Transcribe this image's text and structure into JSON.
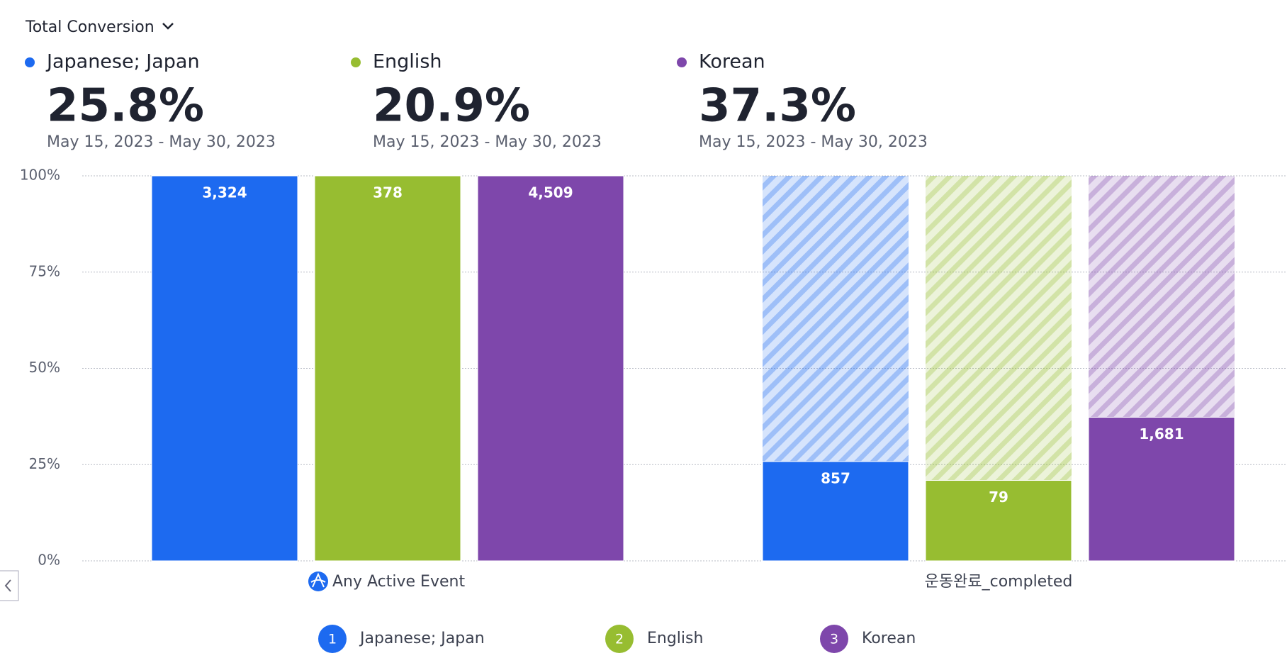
{
  "header": {
    "title": "Total Conversion"
  },
  "summary": [
    {
      "name": "Japanese; Japan",
      "conversion": "25.8%",
      "date_range": "May 15, 2023 - May 30, 2023"
    },
    {
      "name": "English",
      "conversion": "20.9%",
      "date_range": "May 15, 2023 - May 30, 2023"
    },
    {
      "name": "Korean",
      "conversion": "37.3%",
      "date_range": "May 15, 2023 - May 30, 2023"
    }
  ],
  "chart_data": {
    "type": "funnel",
    "categories": [
      "Any Active Event",
      "운동완료_completed"
    ],
    "series": [
      {
        "name": "Japanese; Japan",
        "color": "#1d6af0",
        "values": [
          100,
          25.8
        ],
        "value_labels": [
          "3,324",
          "857"
        ]
      },
      {
        "name": "English",
        "color": "#97bd31",
        "values": [
          100,
          20.9
        ],
        "value_labels": [
          "378",
          "79"
        ]
      },
      {
        "name": "Korean",
        "color": "#7e47ab",
        "values": [
          100,
          37.3
        ],
        "value_labels": [
          "4,509",
          "1,681"
        ]
      }
    ],
    "ylim": [
      0,
      100
    ],
    "yticks": [
      {
        "value": 0,
        "label": "0%"
      },
      {
        "value": 25,
        "label": "25%"
      },
      {
        "value": 50,
        "label": "50%"
      },
      {
        "value": 75,
        "label": "75%"
      },
      {
        "value": 100,
        "label": "100%"
      }
    ],
    "grid": true,
    "legend_markers": [
      "1",
      "2",
      "3"
    ]
  }
}
